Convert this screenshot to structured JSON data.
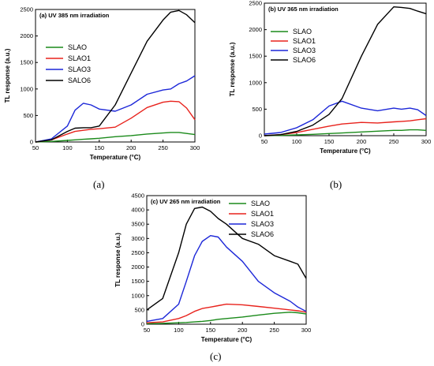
{
  "chart_data": [
    {
      "id": "a",
      "type": "line",
      "title": "(a) UV 385 nm irradiation",
      "xlabel": "Temperature (°C)",
      "ylabel": "TL response (a.u.)",
      "xlim": [
        50,
        300
      ],
      "ylim": [
        0,
        2500
      ],
      "xticks": [
        50,
        100,
        150,
        200,
        250,
        300
      ],
      "yticks": [
        0,
        500,
        1000,
        1500,
        2000,
        2500
      ],
      "x": [
        50,
        75,
        100,
        112,
        125,
        137,
        150,
        175,
        200,
        225,
        250,
        262,
        275,
        287,
        300
      ],
      "series": [
        {
          "name": "SLAO",
          "color": "#1a8a1a",
          "values": [
            0,
            10,
            30,
            40,
            50,
            60,
            70,
            100,
            120,
            150,
            170,
            180,
            180,
            160,
            140
          ]
        },
        {
          "name": "SLAO1",
          "color": "#e8221c",
          "values": [
            0,
            40,
            150,
            200,
            220,
            240,
            250,
            280,
            450,
            650,
            750,
            770,
            760,
            640,
            420
          ]
        },
        {
          "name": "SLAO3",
          "color": "#1c27d8",
          "values": [
            0,
            60,
            300,
            600,
            730,
            700,
            620,
            580,
            700,
            900,
            980,
            1000,
            1100,
            1150,
            1250
          ]
        },
        {
          "name": "SALO6",
          "color": "#000000",
          "values": [
            0,
            40,
            200,
            260,
            270,
            270,
            300,
            700,
            1300,
            1900,
            2300,
            2450,
            2480,
            2400,
            2250
          ]
        }
      ]
    },
    {
      "id": "b",
      "type": "line",
      "title": "(b) UV 365 nm irradiation",
      "xlabel": "Temperature (°C)",
      "ylabel": "TL response (a.u.)",
      "xlim": [
        50,
        300
      ],
      "ylim": [
        0,
        2500
      ],
      "xticks": [
        50,
        100,
        150,
        200,
        250,
        300
      ],
      "yticks": [
        0,
        500,
        1000,
        1500,
        2000,
        2500
      ],
      "x": [
        50,
        75,
        100,
        125,
        150,
        170,
        200,
        225,
        250,
        262,
        275,
        287,
        300
      ],
      "series": [
        {
          "name": "SLAO",
          "color": "#1a8a1a",
          "values": [
            0,
            5,
            15,
            25,
            40,
            50,
            70,
            85,
            100,
            100,
            110,
            110,
            100
          ]
        },
        {
          "name": "SLAO1",
          "color": "#e8221c",
          "values": [
            0,
            20,
            60,
            120,
            180,
            220,
            250,
            240,
            260,
            270,
            280,
            300,
            320
          ]
        },
        {
          "name": "SLAO3",
          "color": "#1c27d8",
          "values": [
            30,
            60,
            150,
            300,
            560,
            650,
            520,
            470,
            520,
            500,
            520,
            490,
            380
          ]
        },
        {
          "name": "SLAO6",
          "color": "#000000",
          "values": [
            0,
            20,
            80,
            200,
            400,
            700,
            1500,
            2100,
            2430,
            2420,
            2400,
            2350,
            2300
          ]
        }
      ]
    },
    {
      "id": "c",
      "type": "line",
      "title": "(c) UV 265 nm irradiation",
      "xlabel": "Temperature (°C)",
      "ylabel": "TL response (a.u.)",
      "xlim": [
        50,
        300
      ],
      "ylim": [
        0,
        4500
      ],
      "xticks": [
        50,
        100,
        150,
        200,
        250,
        300
      ],
      "yticks": [
        0,
        500,
        1000,
        1500,
        2000,
        2500,
        3000,
        3500,
        4000,
        4500
      ],
      "x": [
        50,
        75,
        100,
        112,
        125,
        137,
        150,
        162,
        175,
        200,
        225,
        250,
        275,
        287,
        300
      ],
      "series": [
        {
          "name": "SLAO",
          "color": "#1a8a1a",
          "values": [
            20,
            30,
            50,
            60,
            80,
            100,
            130,
            170,
            200,
            250,
            320,
            380,
            420,
            400,
            360
          ]
        },
        {
          "name": "SLAO1",
          "color": "#e8221c",
          "values": [
            50,
            80,
            200,
            300,
            450,
            550,
            600,
            650,
            700,
            680,
            620,
            560,
            500,
            470,
            420
          ]
        },
        {
          "name": "SLAO3",
          "color": "#1c27d8",
          "values": [
            100,
            200,
            700,
            1500,
            2400,
            2900,
            3100,
            3050,
            2700,
            2200,
            1500,
            1100,
            800,
            600,
            450
          ]
        },
        {
          "name": "SLAO6",
          "color": "#000000",
          "values": [
            500,
            900,
            2500,
            3500,
            4050,
            4100,
            3950,
            3700,
            3500,
            3000,
            2800,
            2400,
            2200,
            2100,
            1600
          ]
        }
      ]
    }
  ],
  "captions": {
    "a": "(a)",
    "b": "(b)",
    "c": "(c)"
  }
}
